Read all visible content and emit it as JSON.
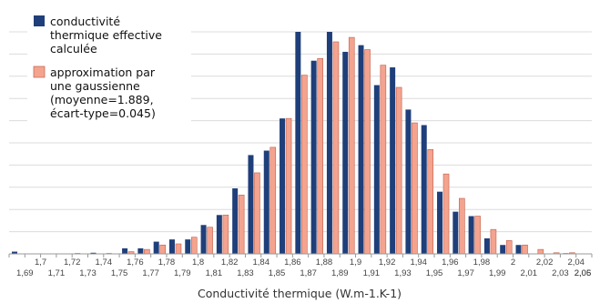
{
  "chart_data": {
    "type": "bar",
    "xlabel": "Conductivité thermique (W.m-1.K-1)",
    "ylabel": "",
    "ylim": [
      0,
      100
    ],
    "grid": true,
    "legend_position": "top-left",
    "tick_labels_upper": [
      "1,7",
      "1,72",
      "1,74",
      "1,76",
      "1,78",
      "1,8",
      "1,82",
      "1,84",
      "1,86",
      "1,88",
      "1,9",
      "1,92",
      "1,94",
      "1,96",
      "1,98",
      "2",
      "2,02",
      "2,04"
    ],
    "tick_labels_lower": [
      "1,69",
      "1,71",
      "1,73",
      "1,75",
      "1,77",
      "1,79",
      "1,81",
      "1,83",
      "1,85",
      "1,87",
      "1,89",
      "1,91",
      "1,93",
      "1,95",
      "1,97",
      "1,99",
      "2,01",
      "2,03",
      "2,05",
      "2,06"
    ],
    "categories": [
      "1,69",
      "1,70",
      "1,71",
      "1,72",
      "1,73",
      "1,74",
      "1,75",
      "1,76",
      "1,77",
      "1,78",
      "1,79",
      "1,80",
      "1,81",
      "1,82",
      "1,83",
      "1,84",
      "1,85",
      "1,86",
      "1,87",
      "1,88",
      "1,89",
      "1,90",
      "1,91",
      "1,92",
      "1,93",
      "1,94",
      "1,95",
      "1,96",
      "1,97",
      "1,98",
      "1,99",
      "2,00",
      "2,01",
      "2,02",
      "2,03",
      "2,04",
      "2,05"
    ],
    "series": [
      {
        "name": "conductivité thermique effective calculée",
        "color": "#1f3f7a",
        "values": [
          1,
          0,
          0,
          0,
          0.3,
          0.5,
          0.3,
          2.5,
          2.5,
          5.5,
          6.5,
          6.5,
          13,
          17.5,
          29.5,
          44.5,
          46.5,
          61,
          100,
          87,
          100,
          91,
          94,
          76,
          84,
          65,
          58,
          28,
          19,
          17,
          7,
          4,
          4,
          0,
          0,
          0.3,
          0
        ]
      },
      {
        "name": "approximation par une gaussienne (moyenne=1.889, écart-type=0.045)",
        "color": "#f4a38f",
        "values": [
          0,
          0,
          0,
          0,
          0,
          0,
          0,
          1,
          2,
          4,
          4.5,
          7.5,
          12,
          17.5,
          26.5,
          36.5,
          48,
          61,
          80.5,
          88,
          95.5,
          97.5,
          92,
          85,
          75,
          59,
          47,
          36,
          25,
          17,
          11,
          6,
          4,
          2,
          0.5,
          0.5,
          0
        ]
      }
    ]
  }
}
